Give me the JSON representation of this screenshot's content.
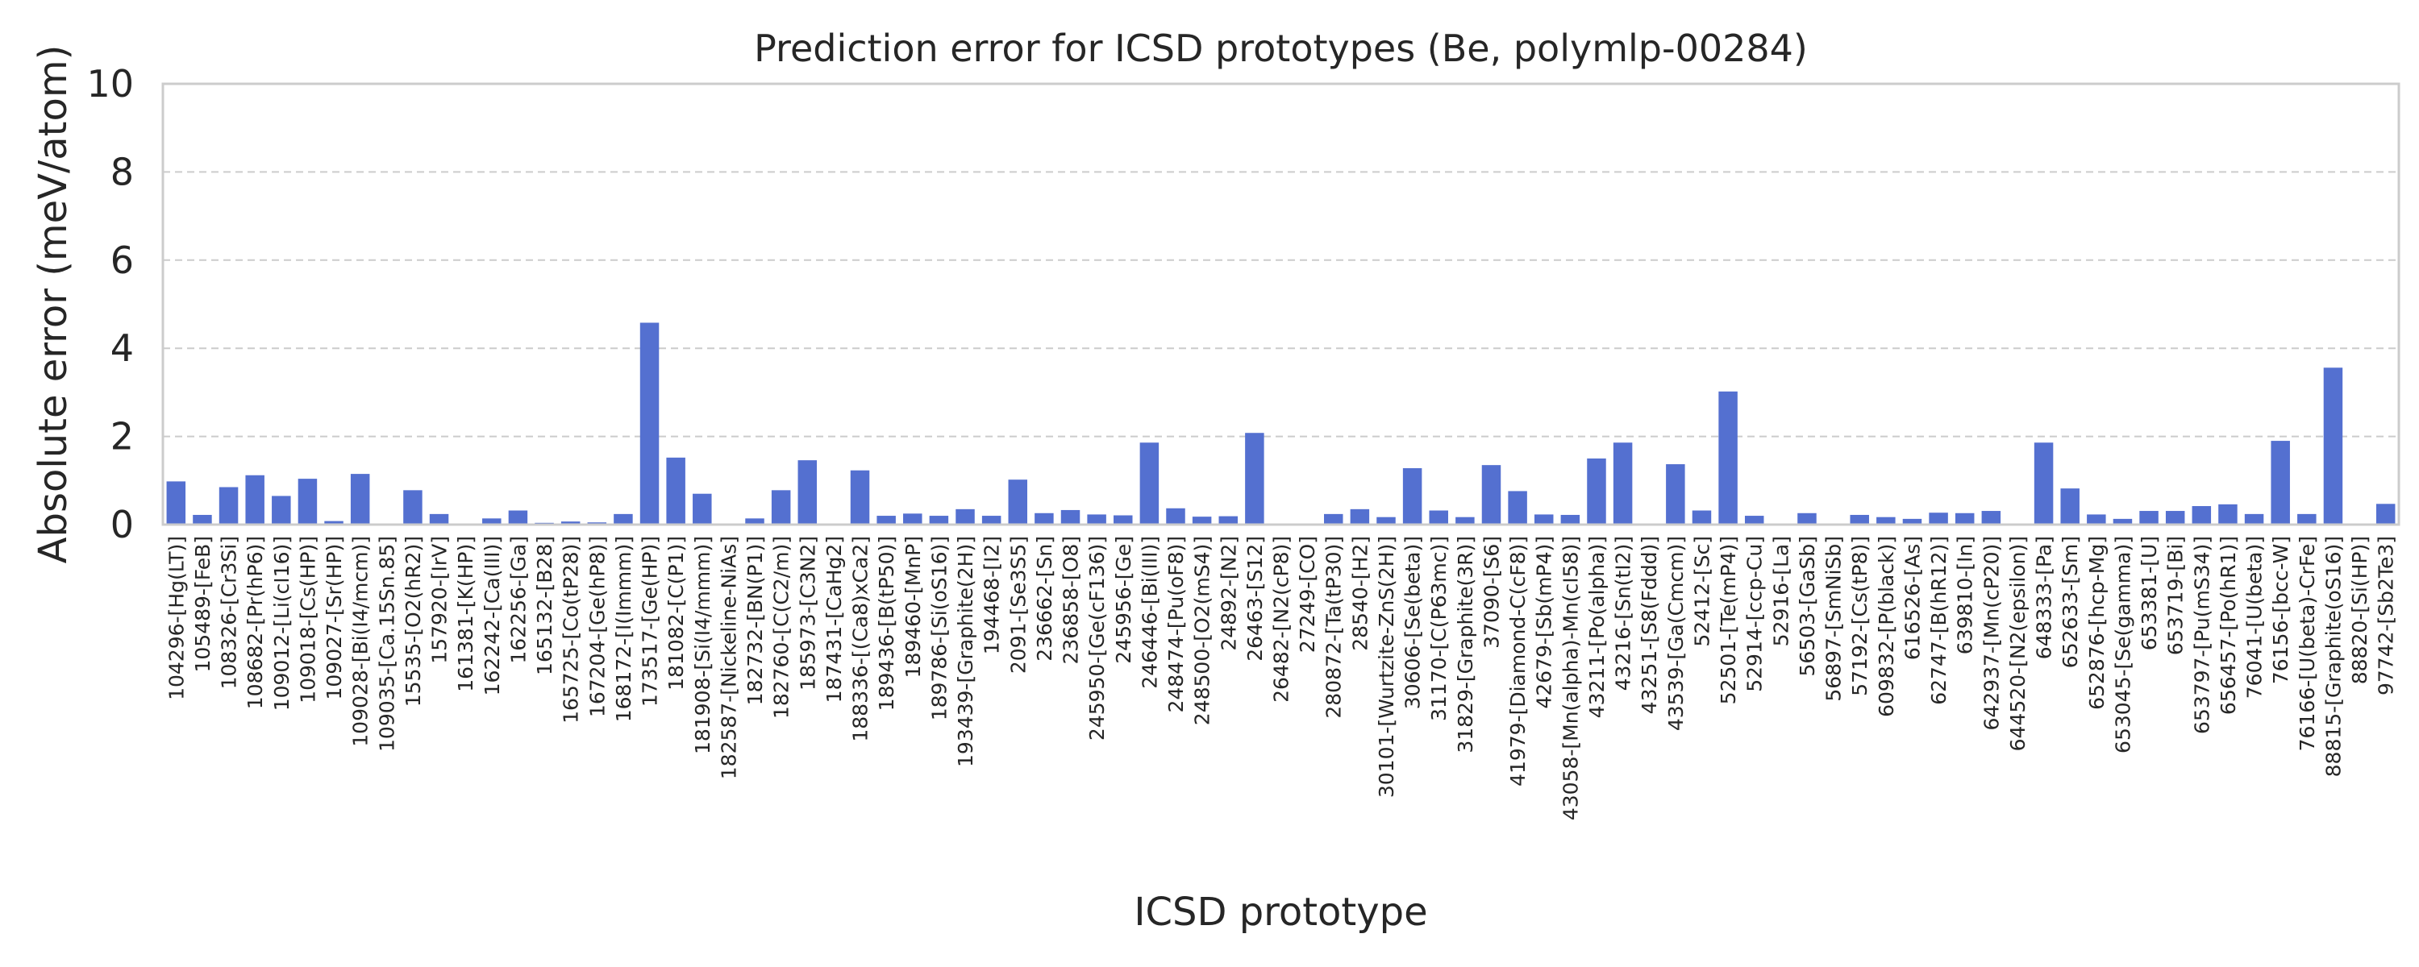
{
  "chart_data": {
    "type": "bar",
    "title": "Prediction error for ICSD prototypes (Be, polymlp-00284)",
    "xlabel": "ICSD prototype",
    "ylabel": "Absolute error (meV/atom)",
    "ylim": [
      0,
      10
    ],
    "yticks": [
      "0",
      "2",
      "4",
      "6",
      "8",
      "10"
    ],
    "grid": true,
    "bar_color": "#5470d0",
    "categories": [
      "104296-[Hg(LT)]",
      "105489-[FeB]",
      "108326-[Cr3Si]",
      "108682-[Pr(hP6)]",
      "109012-[Li(cI16)]",
      "109018-[Cs(HP)]",
      "109027-[Sr(HP)]",
      "109028-[Bi(I4/mcm)]",
      "109035-[Ca.15Sn.85]",
      "15535-[O2(hR2)]",
      "157920-[IrV]",
      "161381-[K(HP)]",
      "162242-[Ca(III)]",
      "162256-[Ga]",
      "165132-[B28]",
      "165725-[Co(tP28)]",
      "167204-[Ge(hP8)]",
      "168172-[I(Immm)]",
      "173517-[Ge(HP)]",
      "181082-[C(P1)]",
      "181908-[Si(I4/mmm)]",
      "182587-[Nickeline-NiAs]",
      "182732-[BN(P1)]",
      "182760-[C(C2/m)]",
      "185973-[C3N2]",
      "187431-[CaHg2]",
      "188336-[(Ca8)xCa2]",
      "189436-[B(tP50)]",
      "189460-[MnP]",
      "189786-[Si(oS16)]",
      "193439-[Graphite(2H)]",
      "194468-[I2]",
      "2091-[Se3S5]",
      "236662-[Sn]",
      "236858-[O8]",
      "245950-[Ge(cF136)]",
      "245956-[Ge]",
      "246446-[Bi(III)]",
      "248474-[Pu(oF8)]",
      "248500-[O2(mS4)]",
      "24892-[N2]",
      "26463-[S12]",
      "26482-[N2(cP8)]",
      "27249-[CO]",
      "280872-[Ta(tP30)]",
      "28540-[H2]",
      "30101-[Wurtzite-ZnS(2H)]",
      "30606-[Se(beta)]",
      "31170-[C(P63mc)]",
      "31829-[Graphite(3R)]",
      "37090-[S6]",
      "41979-[Diamond-C(cF8)]",
      "42679-[Sb(mP4)]",
      "43058-[Mn(alpha)-Mn(cI58)]",
      "43211-[Po(alpha)]",
      "43216-[Sn(tI2)]",
      "43251-[S8(Fddd)]",
      "43539-[Ga(Cmcm)]",
      "52412-[Sc]",
      "52501-[Te(mP4)]",
      "52914-[ccp-Cu]",
      "52916-[La]",
      "56503-[GaSb]",
      "56897-[SmNiSb]",
      "57192-[Cs(tP8)]",
      "609832-[P(black)]",
      "616526-[As]",
      "62747-[B(hR12)]",
      "639810-[In]",
      "642937-[Mn(cP20)]",
      "644520-[N2(epsilon)]",
      "648333-[Pa]",
      "652633-[Sm]",
      "652876-[hcp-Mg]",
      "653045-[Se(gamma)]",
      "653381-[U]",
      "653719-[Bi]",
      "653797-[Pu(mS34)]",
      "656457-[Po(hR1)]",
      "76041-[U(beta)]",
      "76156-[bcc-W]",
      "76166-[U(beta)-CrFe]",
      "88815-[Graphite(oS16)]",
      "88820-[Si(HP)]",
      "97742-[Sb2Te3]"
    ],
    "values": [
      0.98,
      0.22,
      0.85,
      1.12,
      0.65,
      1.04,
      0.08,
      1.15,
      0.02,
      0.78,
      0.24,
      0.02,
      0.14,
      0.32,
      0.04,
      0.07,
      0.05,
      0.24,
      4.58,
      1.52,
      0.7,
      0.01,
      0.14,
      0.78,
      1.46,
      0.02,
      1.23,
      0.2,
      0.25,
      0.2,
      0.35,
      0.2,
      1.02,
      0.26,
      0.33,
      0.23,
      0.21,
      1.86,
      0.37,
      0.18,
      0.19,
      2.08,
      0.02,
      0.02,
      0.24,
      0.35,
      0.17,
      1.28,
      0.32,
      0.17,
      1.35,
      0.76,
      0.23,
      0.22,
      1.5,
      1.86,
      0.02,
      1.37,
      0.32,
      3.02,
      0.2,
      0.01,
      0.26,
      0.01,
      0.22,
      0.17,
      0.13,
      0.27,
      0.26,
      0.31,
      0.01,
      1.86,
      0.82,
      0.23,
      0.13,
      0.31,
      0.31,
      0.42,
      0.46,
      0.24,
      1.9,
      0.24,
      3.56,
      0.01,
      0.47
    ]
  }
}
